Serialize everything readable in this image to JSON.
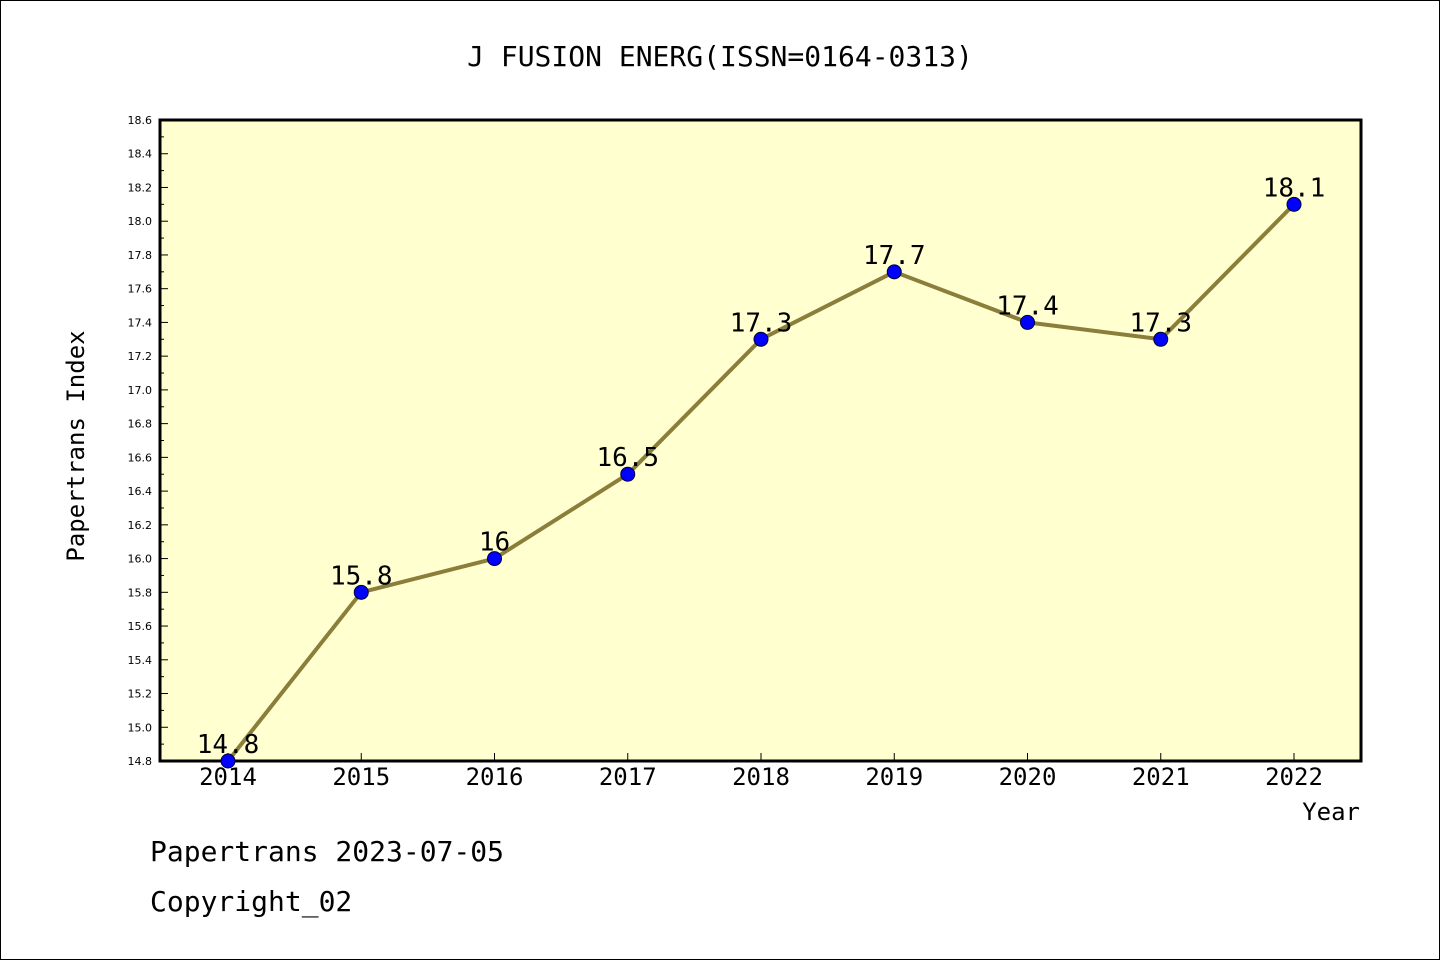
{
  "chart_data": {
    "type": "line",
    "title": "J FUSION ENERG(ISSN=0164-0313)",
    "xlabel": "Year",
    "ylabel": "Papertrans Index",
    "categories": [
      "2014",
      "2015",
      "2016",
      "2017",
      "2018",
      "2019",
      "2020",
      "2021",
      "2022"
    ],
    "values": [
      14.8,
      15.8,
      16,
      16.5,
      17.3,
      17.7,
      17.4,
      17.3,
      18.1
    ],
    "data_labels": [
      "14.8",
      "15.8",
      "16",
      "16.5",
      "17.3",
      "17.7",
      "17.4",
      "17.3",
      "18.1"
    ],
    "ylim": [
      14.8,
      18.6
    ],
    "y_ticks": [
      "14.8",
      "15.0",
      "15.2",
      "15.4",
      "15.6",
      "15.8",
      "16.0",
      "16.2",
      "16.4",
      "16.6",
      "16.8",
      "17.0",
      "17.2",
      "17.4",
      "17.6",
      "17.8",
      "18.0",
      "18.2",
      "18.4",
      "18.6"
    ],
    "grid": false,
    "colors": {
      "plot_background": "#ffffd0",
      "line": "#8b7d3a",
      "marker": "#0000ff"
    }
  },
  "footer": {
    "line1": "Papertrans 2023-07-05",
    "line2": "Copyright_02"
  }
}
